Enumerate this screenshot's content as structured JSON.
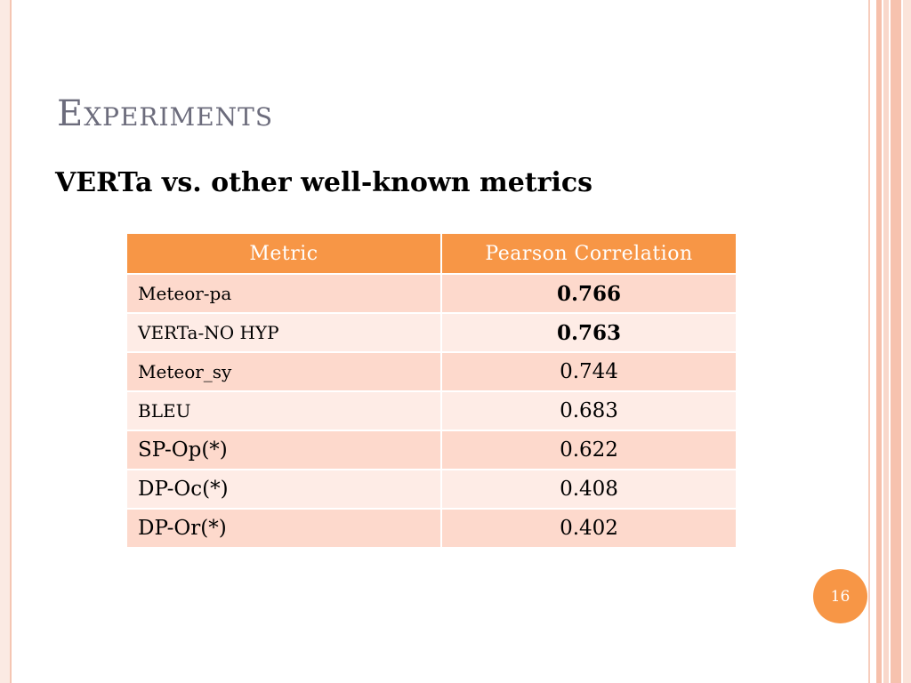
{
  "slide": {
    "title": "Experiments",
    "subtitle": "VERTa vs. other well-known metrics",
    "page_number": "16"
  },
  "table": {
    "headers": [
      "Metric",
      "Pearson Correlation"
    ],
    "rows": [
      {
        "metric": "Meteor-pa",
        "value": "0.766"
      },
      {
        "metric": "VERTa-NO HYP",
        "value": "0.763"
      },
      {
        "metric": "Meteor_sy",
        "value": "0.744"
      },
      {
        "metric": "BLEU",
        "value": "0.683"
      },
      {
        "metric": "SP-Op(*)",
        "value": "0.622"
      },
      {
        "metric": "DP-Oc(*)",
        "value": "0.408"
      },
      {
        "metric": "DP-Or(*)",
        "value": "0.402"
      }
    ]
  },
  "colors": {
    "accent": "#f79646",
    "row_odd": "#fdd9cc",
    "row_even": "#feece6",
    "title": "#6c6c7c"
  }
}
